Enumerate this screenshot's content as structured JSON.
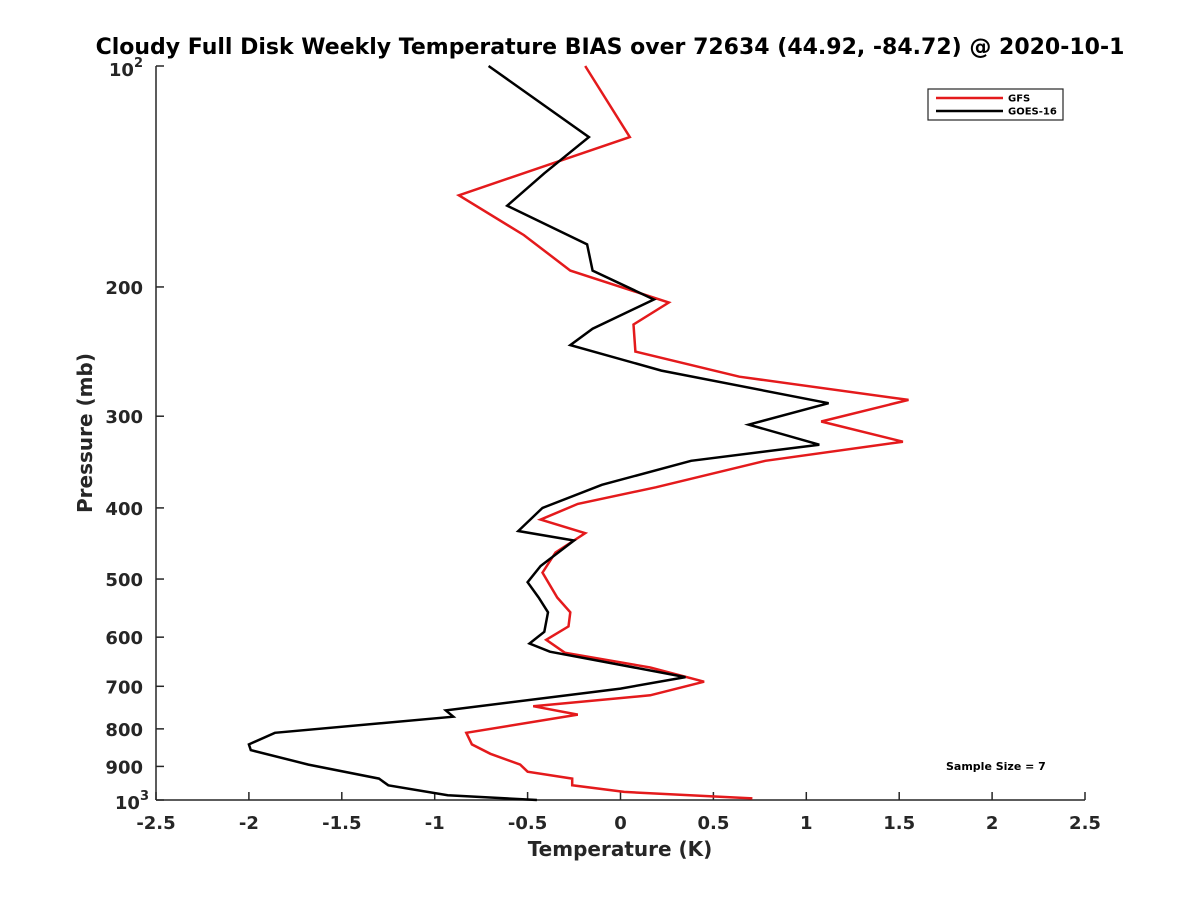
{
  "chart_data": {
    "type": "line",
    "title": "Cloudy Full Disk Weekly Temperature BIAS over 72634 (44.92, -84.72) @ 2020-10-1",
    "xlabel": "Temperature (K)",
    "ylabel": "Pressure (mb)",
    "xlim": [
      -2.5,
      2.5
    ],
    "ylim": [
      100,
      1000
    ],
    "y_scale": "log",
    "y_reversed": true,
    "grid": false,
    "legend_position": "top-right",
    "x_ticks": [
      "-2.5",
      "-2",
      "-1.5",
      "-1",
      "-0.5",
      "0",
      "0.5",
      "1",
      "1.5",
      "2",
      "2.5"
    ],
    "x_tick_values": [
      -2.5,
      -2,
      -1.5,
      -1,
      -0.5,
      0,
      0.5,
      1,
      1.5,
      2,
      2.5
    ],
    "y_ticks": [
      "200",
      "300",
      "400",
      "500",
      "600",
      "700",
      "800",
      "900"
    ],
    "y_tick_values": [
      200,
      300,
      400,
      500,
      600,
      700,
      800,
      900
    ],
    "y_top_label": {
      "base": "10",
      "exp": "2"
    },
    "y_bottom_label": {
      "base": "10",
      "exp": "3"
    },
    "annotation": "Sample Size = 7",
    "series": [
      {
        "name": "GFS",
        "color": "#e41a1c",
        "points": [
          [
            -0.19,
            100
          ],
          [
            0.05,
            125
          ],
          [
            -0.87,
            150
          ],
          [
            -0.52,
            170
          ],
          [
            -0.27,
            190
          ],
          [
            0.26,
            210
          ],
          [
            0.07,
            225
          ],
          [
            0.08,
            245
          ],
          [
            0.64,
            265
          ],
          [
            1.55,
            285
          ],
          [
            1.08,
            305
          ],
          [
            1.52,
            325
          ],
          [
            0.78,
            345
          ],
          [
            0.19,
            375
          ],
          [
            -0.23,
            395
          ],
          [
            -0.43,
            415
          ],
          [
            -0.19,
            433
          ],
          [
            -0.35,
            460
          ],
          [
            -0.42,
            490
          ],
          [
            -0.34,
            530
          ],
          [
            -0.27,
            555
          ],
          [
            -0.28,
            580
          ],
          [
            -0.4,
            605
          ],
          [
            -0.3,
            630
          ],
          [
            0.16,
            660
          ],
          [
            0.45,
            690
          ],
          [
            0.16,
            720
          ],
          [
            -0.47,
            745
          ],
          [
            -0.23,
            765
          ],
          [
            -0.83,
            810
          ],
          [
            -0.8,
            840
          ],
          [
            -0.7,
            865
          ],
          [
            -0.54,
            895
          ],
          [
            -0.5,
            915
          ],
          [
            -0.26,
            935
          ],
          [
            -0.26,
            955
          ],
          [
            0.02,
            975
          ],
          [
            0.71,
            995
          ]
        ]
      },
      {
        "name": "GOES-16",
        "color": "#000000",
        "points": [
          [
            -0.71,
            100
          ],
          [
            -0.17,
            125
          ],
          [
            -0.41,
            140
          ],
          [
            -0.61,
            155
          ],
          [
            -0.18,
            175
          ],
          [
            -0.15,
            190
          ],
          [
            0.18,
            208
          ],
          [
            -0.15,
            228
          ],
          [
            -0.27,
            240
          ],
          [
            0.22,
            260
          ],
          [
            1.12,
            288
          ],
          [
            0.69,
            308
          ],
          [
            1.07,
            328
          ],
          [
            0.38,
            345
          ],
          [
            -0.1,
            372
          ],
          [
            -0.42,
            400
          ],
          [
            -0.55,
            430
          ],
          [
            -0.25,
            443
          ],
          [
            -0.43,
            480
          ],
          [
            -0.5,
            505
          ],
          [
            -0.44,
            530
          ],
          [
            -0.39,
            555
          ],
          [
            -0.41,
            590
          ],
          [
            -0.49,
            612
          ],
          [
            -0.38,
            628
          ],
          [
            0.35,
            680
          ],
          [
            0.0,
            705
          ],
          [
            -0.94,
            755
          ],
          [
            -0.9,
            770
          ],
          [
            -1.86,
            810
          ],
          [
            -2.0,
            840
          ],
          [
            -1.99,
            855
          ],
          [
            -1.68,
            895
          ],
          [
            -1.3,
            935
          ],
          [
            -1.25,
            955
          ],
          [
            -0.93,
            985
          ],
          [
            -0.45,
            1000
          ]
        ]
      }
    ]
  }
}
